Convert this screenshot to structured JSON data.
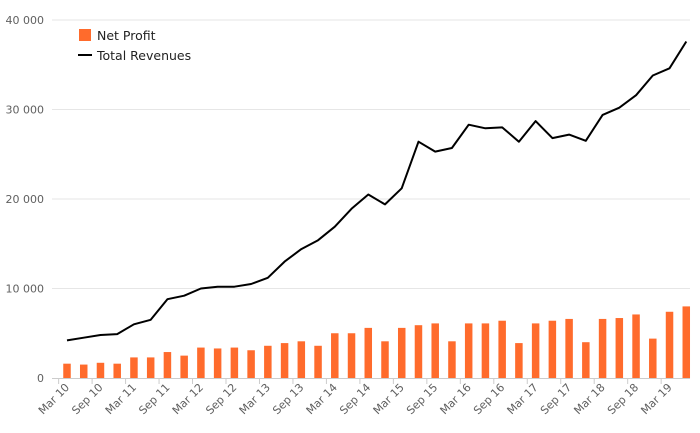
{
  "chart_data": {
    "type": "bar+line",
    "categories": [
      "Mar 10",
      "Jun 10",
      "Sep 10",
      "Dec 10",
      "Mar 11",
      "Jun 11",
      "Sep 11",
      "Dec 11",
      "Mar 12",
      "Jun 12",
      "Sep 12",
      "Dec 12",
      "Mar 13",
      "Jun 13",
      "Sep 13",
      "Dec 13",
      "Mar 14",
      "Jun 14",
      "Sep 14",
      "Dec 14",
      "Mar 15",
      "Jun 15",
      "Sep 15",
      "Dec 15",
      "Mar 16",
      "Jun 16",
      "Sep 16",
      "Dec 16",
      "Mar 17",
      "Jun 17",
      "Sep 17",
      "Dec 17",
      "Mar 18",
      "Jun 18",
      "Sep 18",
      "Dec 18",
      "Mar 19",
      "Jun 19"
    ],
    "x_tick_labels": [
      "Mar 10",
      "Sep 10",
      "Mar 11",
      "Sep 11",
      "Mar 12",
      "Sep 12",
      "Mar 13",
      "Sep 13",
      "Mar 14",
      "Sep 14",
      "Mar 15",
      "Sep 15",
      "Mar 16",
      "Sep 16",
      "Mar 17",
      "Sep 17",
      "Mar 18",
      "Sep 18",
      "Mar 19"
    ],
    "y_ticks": [
      0,
      10000,
      20000,
      30000,
      40000
    ],
    "y_tick_labels": [
      "0",
      "10 000",
      "20 000",
      "30 000",
      "40 000"
    ],
    "ylim": [
      0,
      40000
    ],
    "grid": true,
    "legend_position": "top-left",
    "series": [
      {
        "name": "Net Profit",
        "type": "bar",
        "color": "#ff6b2c",
        "values": [
          1600,
          1500,
          1700,
          1600,
          2300,
          2300,
          2900,
          2500,
          3400,
          3300,
          3400,
          3100,
          3600,
          3900,
          4100,
          3600,
          5000,
          5000,
          5600,
          4100,
          5600,
          5900,
          6100,
          4100,
          6100,
          6100,
          6400,
          3900,
          6100,
          6400,
          6600,
          4000,
          6600,
          6700,
          7100,
          4400,
          7400,
          8000
        ]
      },
      {
        "name": "Total Revenues",
        "type": "line",
        "color": "#000000",
        "values": [
          4200,
          4500,
          4800,
          4900,
          6000,
          6500,
          8800,
          9200,
          10000,
          10200,
          10200,
          10500,
          11200,
          13000,
          14400,
          15400,
          16900,
          18900,
          20500,
          19400,
          21200,
          26400,
          25300,
          25700,
          28300,
          27900,
          28000,
          26400,
          28700,
          26800,
          27200,
          26500,
          29400,
          30200,
          31600,
          33800,
          34600,
          37600
        ]
      }
    ]
  },
  "legend": {
    "items": [
      {
        "label": "Net Profit",
        "color": "#ff6b2c",
        "symbol": "square"
      },
      {
        "label": "Total Revenues",
        "color": "#000000",
        "symbol": "line"
      }
    ]
  }
}
